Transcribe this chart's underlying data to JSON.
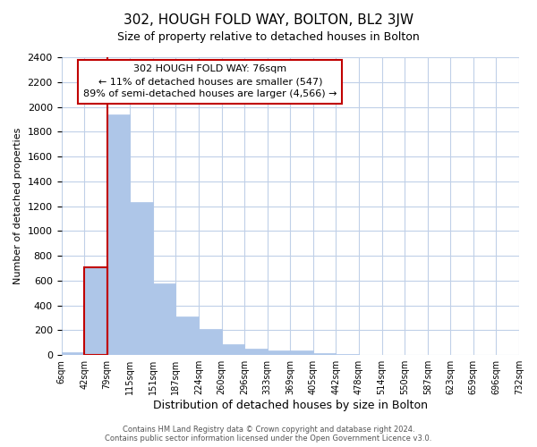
{
  "title": "302, HOUGH FOLD WAY, BOLTON, BL2 3JW",
  "subtitle": "Size of property relative to detached houses in Bolton",
  "xlabel": "Distribution of detached houses by size in Bolton",
  "ylabel": "Number of detached properties",
  "bin_labels": [
    "6sqm",
    "42sqm",
    "79sqm",
    "115sqm",
    "151sqm",
    "187sqm",
    "224sqm",
    "260sqm",
    "296sqm",
    "333sqm",
    "369sqm",
    "405sqm",
    "442sqm",
    "478sqm",
    "514sqm",
    "550sqm",
    "587sqm",
    "623sqm",
    "659sqm",
    "696sqm",
    "732sqm"
  ],
  "bar_heights": [
    20,
    710,
    1940,
    1230,
    580,
    310,
    210,
    90,
    50,
    40,
    35,
    15,
    8,
    5,
    3,
    2,
    1,
    1,
    0,
    0
  ],
  "bar_color": "#aec6e8",
  "highlight_bar_index": 1,
  "highlight_color": "#c00000",
  "annotation_title": "302 HOUGH FOLD WAY: 76sqm",
  "annotation_line1": "← 11% of detached houses are smaller (547)",
  "annotation_line2": "89% of semi-detached houses are larger (4,566) →",
  "annotation_box_color": "#ffffff",
  "annotation_box_edge_color": "#c00000",
  "ylim": [
    0,
    2400
  ],
  "yticks": [
    0,
    200,
    400,
    600,
    800,
    1000,
    1200,
    1400,
    1600,
    1800,
    2000,
    2200,
    2400
  ],
  "footer1": "Contains HM Land Registry data © Crown copyright and database right 2024.",
  "footer2": "Contains public sector information licensed under the Open Government Licence v3.0.",
  "background_color": "#ffffff",
  "grid_color": "#c0d0e8"
}
